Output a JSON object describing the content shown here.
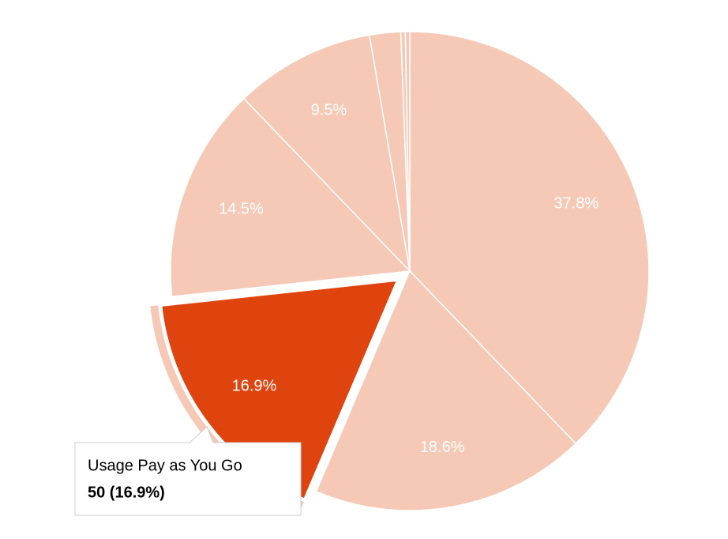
{
  "chart_data": {
    "type": "pie",
    "categories": [
      null,
      null,
      "Usage Pay as You Go",
      null,
      null,
      null,
      null,
      null
    ],
    "values": [
      37.8,
      18.6,
      16.9,
      14.5,
      9.5,
      2.1,
      0.3,
      0.3
    ],
    "value_labels": [
      "37.8%",
      "18.6%",
      "16.9%",
      "14.5%",
      "9.5%",
      null,
      null,
      null
    ],
    "color": "#f5c9b6",
    "highlight": {
      "index": 2,
      "color": "#e0440e"
    },
    "tooltip": "50 (16.9%)"
  }
}
